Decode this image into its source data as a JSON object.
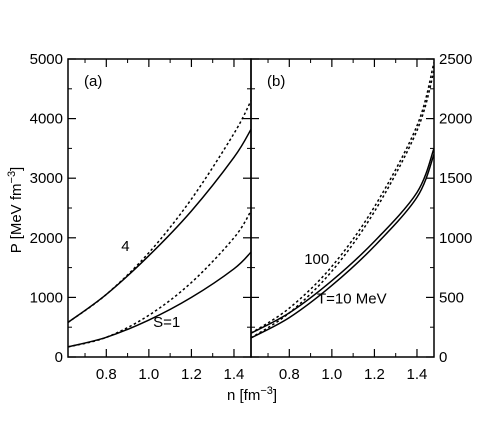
{
  "chart_data": [
    {
      "type": "line",
      "panel_label": "(a)",
      "xlabel": "n [fm",
      "xlabel_sup": "−3",
      "xlabel_close": "]",
      "ylabel": "P [MeV fm",
      "ylabel_sup": "−3",
      "ylabel_close": "]",
      "xlim": [
        0.62,
        1.48
      ],
      "ylim": [
        0,
        5000
      ],
      "xticks": [
        0.8,
        1.0,
        1.2,
        1.4
      ],
      "xtick_labels": [
        "0.8",
        "1.0",
        "1.2",
        "1.4"
      ],
      "yticks": [
        0,
        1000,
        2000,
        3000,
        4000,
        5000
      ],
      "ytick_labels": [
        "0",
        "1000",
        "2000",
        "3000",
        "4000",
        "5000"
      ],
      "series": [
        {
          "style": "solid",
          "x": [
            0.62,
            0.8,
            1.0,
            1.2,
            1.4,
            1.48
          ],
          "y": [
            580,
            1050,
            1700,
            2450,
            3350,
            3820
          ]
        },
        {
          "style": "dotted",
          "x": [
            0.62,
            0.8,
            1.0,
            1.2,
            1.4,
            1.48
          ],
          "y": [
            580,
            1050,
            1750,
            2650,
            3750,
            4300
          ]
        },
        {
          "style": "solid",
          "x": [
            0.62,
            0.8,
            1.0,
            1.2,
            1.4,
            1.48
          ],
          "y": [
            170,
            330,
            620,
            1000,
            1480,
            1760
          ]
        },
        {
          "style": "dotted",
          "x": [
            0.62,
            0.8,
            1.0,
            1.2,
            1.4,
            1.48
          ],
          "y": [
            170,
            330,
            700,
            1250,
            2000,
            2450
          ]
        }
      ],
      "annotations": [
        {
          "text": "4",
          "x": 0.87,
          "y": 1780
        },
        {
          "text": "S=1",
          "x": 1.02,
          "y": 500
        }
      ]
    },
    {
      "type": "line",
      "panel_label": "(b)",
      "xlabel": "n [fm",
      "xlabel_sup": "−3",
      "xlabel_close": "]",
      "xlim": [
        0.62,
        1.48
      ],
      "ylim": [
        0,
        2500
      ],
      "xticks": [
        0.8,
        1.0,
        1.2,
        1.4
      ],
      "xtick_labels": [
        "0.8",
        "1.0",
        "1.2",
        "1.4"
      ],
      "yticks": [
        0,
        500,
        1000,
        1500,
        2000,
        2500
      ],
      "ytick_labels": [
        "0",
        "500",
        "1000",
        "1500",
        "2000",
        "2500"
      ],
      "series": [
        {
          "style": "solid",
          "x": [
            0.62,
            0.8,
            1.0,
            1.2,
            1.4,
            1.48
          ],
          "y": [
            160,
            330,
            600,
            930,
            1340,
            1700
          ]
        },
        {
          "style": "solid",
          "x": [
            0.62,
            0.8,
            1.0,
            1.2,
            1.4,
            1.48
          ],
          "y": [
            200,
            370,
            640,
            970,
            1380,
            1750
          ]
        },
        {
          "style": "dotted",
          "x": [
            0.62,
            0.8,
            1.0,
            1.2,
            1.4,
            1.48
          ],
          "y": [
            160,
            370,
            720,
            1220,
            1900,
            2400
          ]
        },
        {
          "style": "dotted",
          "x": [
            0.62,
            0.8,
            1.0,
            1.2,
            1.4,
            1.48
          ],
          "y": [
            200,
            410,
            760,
            1260,
            1940,
            2470
          ]
        }
      ],
      "annotations": [
        {
          "text": "100",
          "x": 0.87,
          "y": 780
        },
        {
          "text": "T=10 MeV",
          "x": 0.93,
          "y": 450
        }
      ]
    }
  ]
}
